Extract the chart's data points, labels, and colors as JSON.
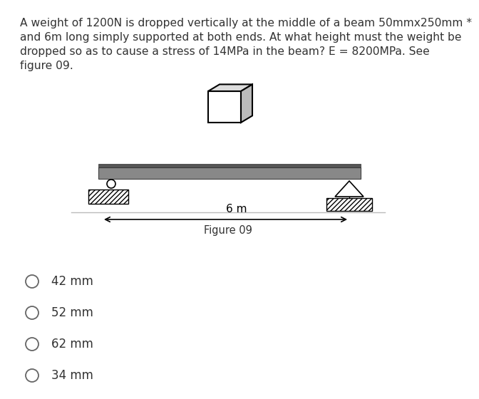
{
  "question_text_lines": [
    "A weight of 1200N is dropped vertically at the middle of a beam 50mmx250mm *",
    "and 6m long simply supported at both ends. At what height must the weight be",
    "dropped so as to cause a stress of 14MPa in the beam? E = 8200MPa. See",
    "figure 09."
  ],
  "figure_label": "Figure 09",
  "span_label": "6 m",
  "options": [
    "42 mm",
    "52 mm",
    "62 mm",
    "34 mm"
  ],
  "white_bg": "#ffffff",
  "beam_color": "#888888",
  "beam_top_color": "#555555",
  "text_color": "#333333"
}
